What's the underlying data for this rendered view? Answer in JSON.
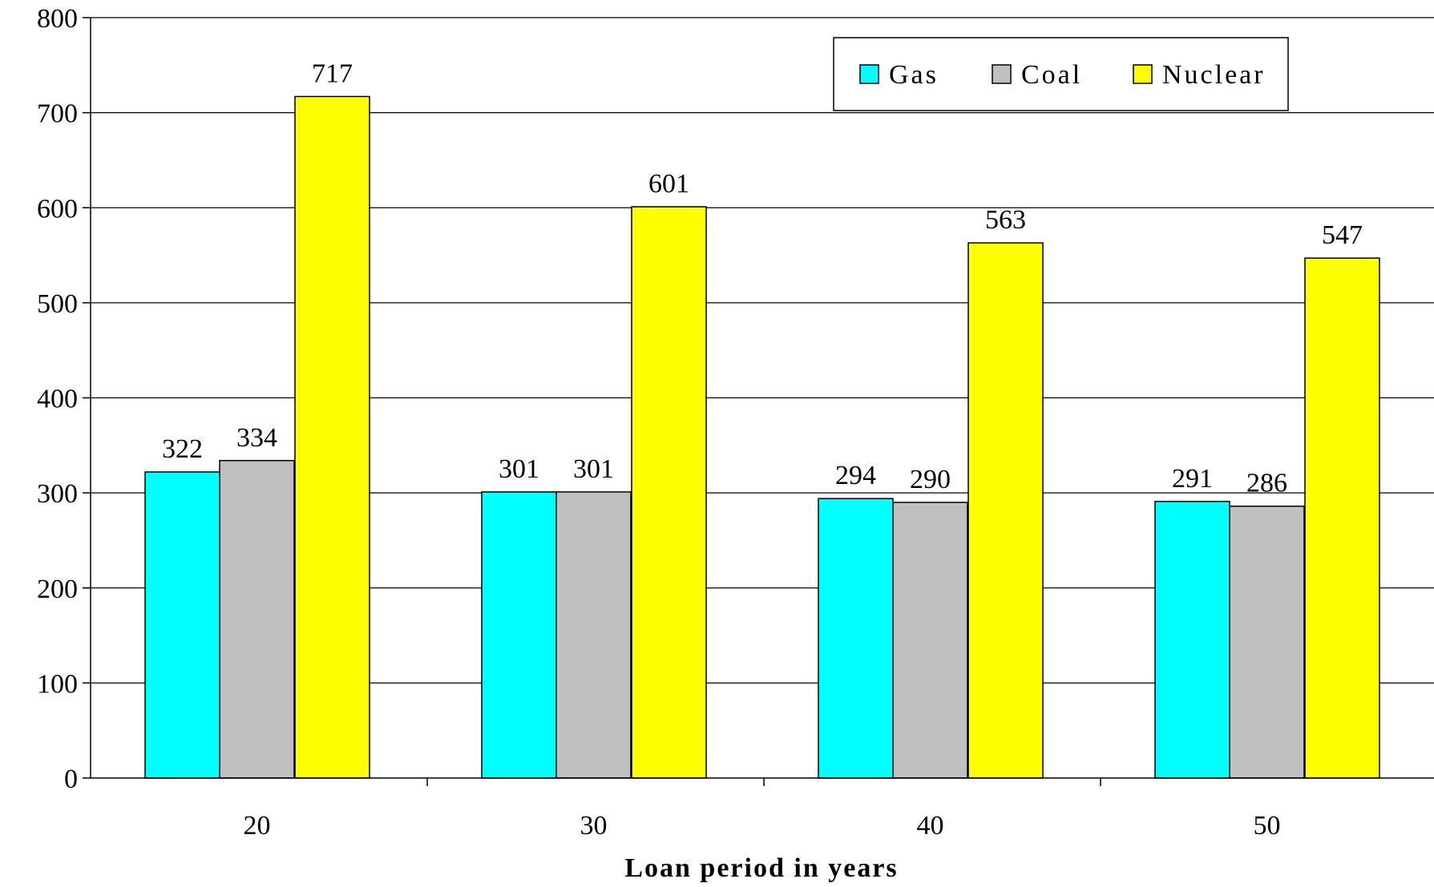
{
  "chart_data": {
    "type": "bar",
    "title": "",
    "xlabel": "Loan period in years",
    "ylabel": "",
    "categories": [
      "20",
      "30",
      "40",
      "50"
    ],
    "series": [
      {
        "name": "Gas",
        "color": "#00FFFF",
        "values": [
          322,
          301,
          294,
          291
        ]
      },
      {
        "name": "Coal",
        "color": "#C0C0C0",
        "values": [
          334,
          301,
          290,
          286
        ]
      },
      {
        "name": "Nuclear",
        "color": "#FFFF00",
        "values": [
          717,
          601,
          563,
          547
        ]
      }
    ],
    "ylim": [
      0,
      800
    ],
    "yticks": [
      "0",
      "100",
      "200",
      "300",
      "400",
      "500",
      "600",
      "700",
      "800"
    ],
    "grid": true,
    "legend_position": "top-right"
  }
}
